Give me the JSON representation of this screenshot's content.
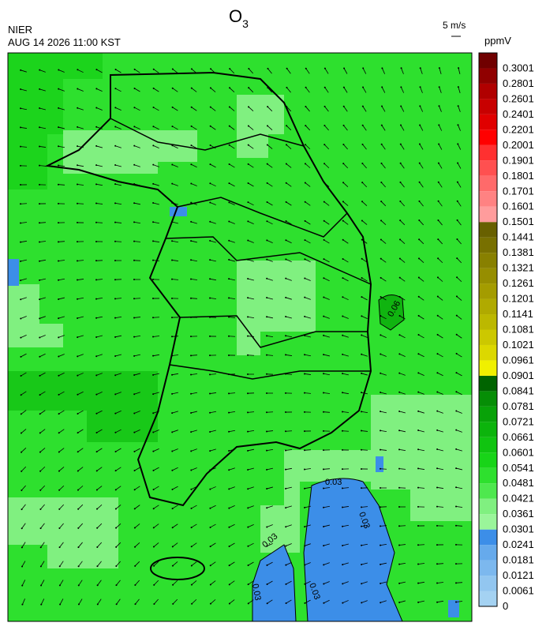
{
  "header": {
    "title": {
      "main": "O",
      "subscript": "3"
    },
    "source": "NIER",
    "datetime": "AUG 14 2026 11:00 KST",
    "wind_scale": "5 m/s",
    "unit": "ppmV"
  },
  "contour_labels": [
    "0.06",
    "0.03",
    "0.03",
    "0.03",
    "0.03",
    "0.03"
  ],
  "colorbar": [
    {
      "label": "0",
      "color": "#a4d2f2"
    },
    {
      "label": "0.0061",
      "color": "#92c6f0"
    },
    {
      "label": "0.0121",
      "color": "#7cb8ee"
    },
    {
      "label": "0.0181",
      "color": "#66aaec"
    },
    {
      "label": "0.0241",
      "color": "#3c8ee8"
    },
    {
      "label": "0.0301",
      "color": "#9af59a"
    },
    {
      "label": "0.0361",
      "color": "#80f080"
    },
    {
      "label": "0.0421",
      "color": "#4ee84e"
    },
    {
      "label": "0.0481",
      "color": "#2ee02e"
    },
    {
      "label": "0.0541",
      "color": "#18d418"
    },
    {
      "label": "0.0601",
      "color": "#10c410"
    },
    {
      "label": "0.0661",
      "color": "#0cb40c"
    },
    {
      "label": "0.0721",
      "color": "#08a208"
    },
    {
      "label": "0.0781",
      "color": "#068e06"
    },
    {
      "label": "0.0841",
      "color": "#006400"
    },
    {
      "label": "0.0901",
      "color": "#f0f000"
    },
    {
      "label": "0.0961",
      "color": "#dcd800"
    },
    {
      "label": "0.1021",
      "color": "#ccc800"
    },
    {
      "label": "0.1081",
      "color": "#bcb800"
    },
    {
      "label": "0.1141",
      "color": "#b0aa00"
    },
    {
      "label": "0.1201",
      "color": "#a49c00"
    },
    {
      "label": "0.1261",
      "color": "#968e00"
    },
    {
      "label": "0.1321",
      "color": "#888000"
    },
    {
      "label": "0.1381",
      "color": "#787000"
    },
    {
      "label": "0.1441",
      "color": "#686000"
    },
    {
      "label": "0.1501",
      "color": "#ff9c9c"
    },
    {
      "label": "0.1601",
      "color": "#ff8282"
    },
    {
      "label": "0.1701",
      "color": "#ff6a6a"
    },
    {
      "label": "0.1801",
      "color": "#ff5050"
    },
    {
      "label": "0.1901",
      "color": "#ff3030"
    },
    {
      "label": "0.2001",
      "color": "#ff0000"
    },
    {
      "label": "0.2201",
      "color": "#e00000"
    },
    {
      "label": "0.2401",
      "color": "#c80000"
    },
    {
      "label": "0.2601",
      "color": "#b00000"
    },
    {
      "label": "0.2801",
      "color": "#900000"
    },
    {
      "label": "0.3001",
      "color": "#700000"
    }
  ]
}
